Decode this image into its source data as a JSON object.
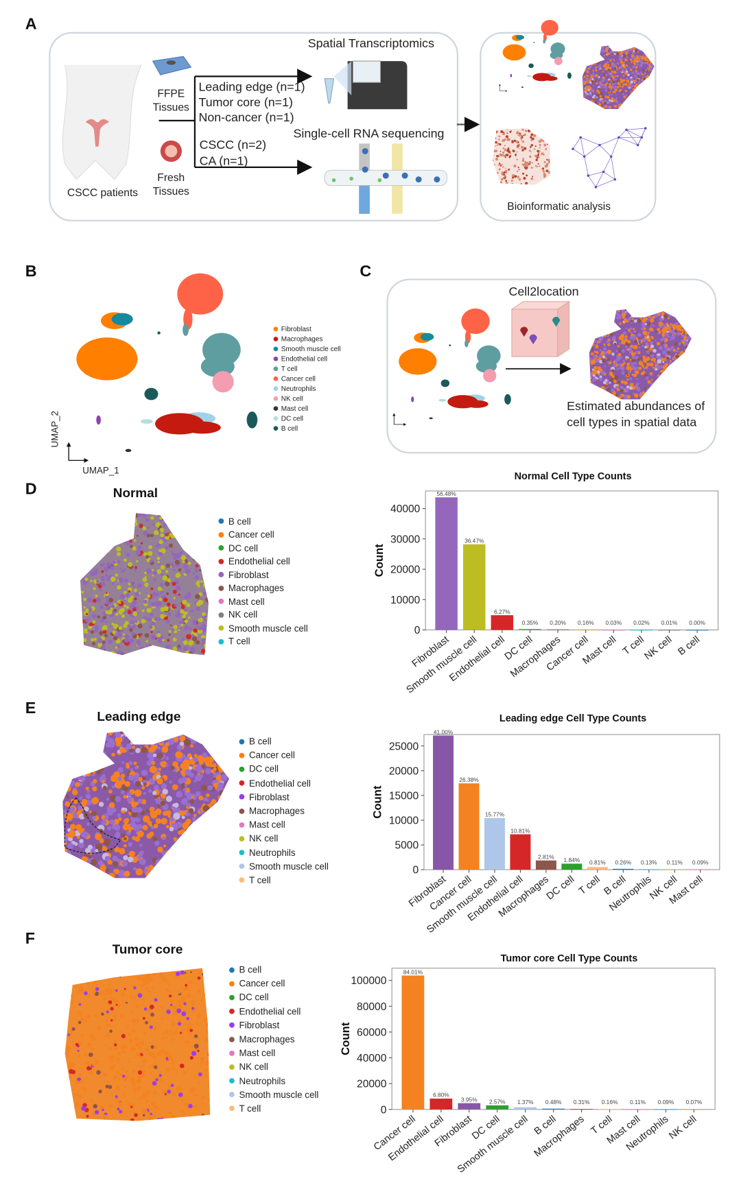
{
  "panels": {
    "A": {
      "label": "A",
      "patients_label": "CSCC patients",
      "ffpe_label": "FFPE\nTissues",
      "fresh_label": "Fresh\nTissues",
      "st_samples": [
        "Leading edge (n=1)",
        "Tumor core (n=1)",
        "Non-cancer (n=1)"
      ],
      "sc_samples": [
        "CSCC (n=2)",
        "CA (n=1)"
      ],
      "st_title": "Spatial Transcriptomics",
      "sc_title": "Single-cell RNA sequencing",
      "analysis_label": "Bioinformatic analysis"
    },
    "B": {
      "label": "B",
      "xaxis": "UMAP_1",
      "yaxis": "UMAP_2",
      "legend": [
        {
          "name": "Fibroblast",
          "color": "#ff7f00"
        },
        {
          "name": "Macrophages",
          "color": "#c41a0f"
        },
        {
          "name": "Smooth muscle cell",
          "color": "#148a9c"
        },
        {
          "name": "Endothelial cell",
          "color": "#8e44ad"
        },
        {
          "name": "T cell",
          "color": "#5f9ea0"
        },
        {
          "name": "Cancer cell",
          "color": "#ff6347"
        },
        {
          "name": "Neutrophils",
          "color": "#9fd3e6"
        },
        {
          "name": "NK cell",
          "color": "#f49cb0"
        },
        {
          "name": "Mast cell",
          "color": "#333333"
        },
        {
          "name": "DC cell",
          "color": "#b8dde0"
        },
        {
          "name": "B cell",
          "color": "#1a5a5a"
        }
      ]
    },
    "C": {
      "label": "C",
      "method": "Cell2location",
      "caption_line1": "Estimated abundances of",
      "caption_line2": "cell types in spatial data"
    },
    "D": {
      "label": "D",
      "title": "Normal",
      "legend": [
        {
          "name": "B cell",
          "color": "#1f77b4"
        },
        {
          "name": "Cancer cell",
          "color": "#ff7f0e"
        },
        {
          "name": "DC cell",
          "color": "#2ca02c"
        },
        {
          "name": "Endothelial cell",
          "color": "#d62728"
        },
        {
          "name": "Fibroblast",
          "color": "#9467bd"
        },
        {
          "name": "Macrophages",
          "color": "#8c564b"
        },
        {
          "name": "Mast cell",
          "color": "#e377c2"
        },
        {
          "name": "NK cell",
          "color": "#7f7f7f"
        },
        {
          "name": "Smooth muscle cell",
          "color": "#bcbd22"
        },
        {
          "name": "T cell",
          "color": "#17becf"
        }
      ]
    },
    "E": {
      "label": "E",
      "title": "Leading edge",
      "legend": [
        {
          "name": "B cell",
          "color": "#1f77b4"
        },
        {
          "name": "Cancer cell",
          "color": "#ff7f0e"
        },
        {
          "name": "DC cell",
          "color": "#2ca02c"
        },
        {
          "name": "Endothelial cell",
          "color": "#d62728"
        },
        {
          "name": "Fibroblast",
          "color": "#9a3cf0"
        },
        {
          "name": "Macrophages",
          "color": "#8c564b"
        },
        {
          "name": "Mast cell",
          "color": "#e377c2"
        },
        {
          "name": "NK cell",
          "color": "#bcbd22"
        },
        {
          "name": "Neutrophils",
          "color": "#17becf"
        },
        {
          "name": "Smooth muscle cell",
          "color": "#aec7e8"
        },
        {
          "name": "T cell",
          "color": "#ffbb78"
        }
      ]
    },
    "F": {
      "label": "F",
      "title": "Tumor core",
      "legend": [
        {
          "name": "B cell",
          "color": "#1f77b4"
        },
        {
          "name": "Cancer cell",
          "color": "#ff7f0e"
        },
        {
          "name": "DC cell",
          "color": "#2ca02c"
        },
        {
          "name": "Endothelial cell",
          "color": "#d62728"
        },
        {
          "name": "Fibroblast",
          "color": "#9a3cf0"
        },
        {
          "name": "Macrophages",
          "color": "#8c564b"
        },
        {
          "name": "Mast cell",
          "color": "#e377c2"
        },
        {
          "name": "NK cell",
          "color": "#bcbd22"
        },
        {
          "name": "Neutrophils",
          "color": "#17becf"
        },
        {
          "name": "Smooth muscle cell",
          "color": "#aec7e8"
        },
        {
          "name": "T cell",
          "color": "#ffbb78"
        }
      ]
    }
  },
  "chart_data": [
    {
      "type": "bar",
      "title": "Normal Cell Type Counts",
      "xlabel": "",
      "ylabel": "Count",
      "ylim": [
        0,
        45800
      ],
      "yticks": [
        0,
        10000,
        20000,
        30000,
        40000
      ],
      "categories": [
        "Fibroblast",
        "Smooth muscle cell",
        "Endothelial cell",
        "DC cell",
        "Macrophages",
        "Cancer cell",
        "Mast cell",
        "T cell",
        "NK cell",
        "B cell"
      ],
      "values": [
        43700,
        28220,
        4850,
        270,
        155,
        124,
        23,
        15,
        8,
        2
      ],
      "labels": [
        "56.48%",
        "36.47%",
        "6.27%",
        "0.35%",
        "0.20%",
        "0.16%",
        "0.03%",
        "0.02%",
        "0.01%",
        "0.00%"
      ],
      "colors": [
        "#9467bd",
        "#bcbd22",
        "#d62728",
        "#2ca02c",
        "#8c564b",
        "#ff7f0e",
        "#e377c2",
        "#17becf",
        "#7f7f7f",
        "#1f77b4"
      ]
    },
    {
      "type": "bar",
      "title": "Leading edge Cell Type Counts",
      "xlabel": "",
      "ylabel": "Count",
      "ylim": [
        0,
        27300
      ],
      "yticks": [
        0,
        5000,
        10000,
        15000,
        20000,
        25000
      ],
      "categories": [
        "Fibroblast",
        "Cancer cell",
        "Smooth muscle cell",
        "Endothelial cell",
        "Macrophages",
        "DC cell",
        "T cell",
        "B cell",
        "Neutrophils",
        "NK cell",
        "Mast cell"
      ],
      "values": [
        27100,
        17440,
        10420,
        7150,
        1860,
        1215,
        535,
        172,
        86,
        73,
        60
      ],
      "labels": [
        "41.00%",
        "26.38%",
        "15.77%",
        "10.81%",
        "2.81%",
        "1.84%",
        "0.81%",
        "0.26%",
        "0.13%",
        "0.11%",
        "0.09%"
      ],
      "colors": [
        "#8856a7",
        "#f58220",
        "#aec7e8",
        "#d62728",
        "#8c564b",
        "#2ca02c",
        "#ffbb78",
        "#1f77b4",
        "#17becf",
        "#bcbd22",
        "#e377c2"
      ]
    },
    {
      "type": "bar",
      "title": "Tumor core Cell Type Counts",
      "xlabel": "",
      "ylabel": "Count",
      "ylim": [
        0,
        109500
      ],
      "yticks": [
        0,
        20000,
        40000,
        60000,
        80000,
        100000
      ],
      "categories": [
        "Cancer cell",
        "Endothelial cell",
        "Fibroblast",
        "DC cell",
        "Smooth muscle cell",
        "B cell",
        "Macrophages",
        "T cell",
        "Mast cell",
        "Neutrophils",
        "NK cell"
      ],
      "values": [
        103800,
        8400,
        4880,
        3175,
        1690,
        593,
        383,
        198,
        136,
        111,
        86
      ],
      "labels": [
        "84.01%",
        "6.80%",
        "3.95%",
        "2.57%",
        "1.37%",
        "0.48%",
        "0.31%",
        "0.16%",
        "0.11%",
        "0.09%",
        "0.07%"
      ],
      "colors": [
        "#f58220",
        "#d62728",
        "#8856a7",
        "#2ca02c",
        "#aec7e8",
        "#1f77b4",
        "#8c564b",
        "#ffbb78",
        "#e377c2",
        "#17becf",
        "#bcbd22"
      ]
    }
  ]
}
